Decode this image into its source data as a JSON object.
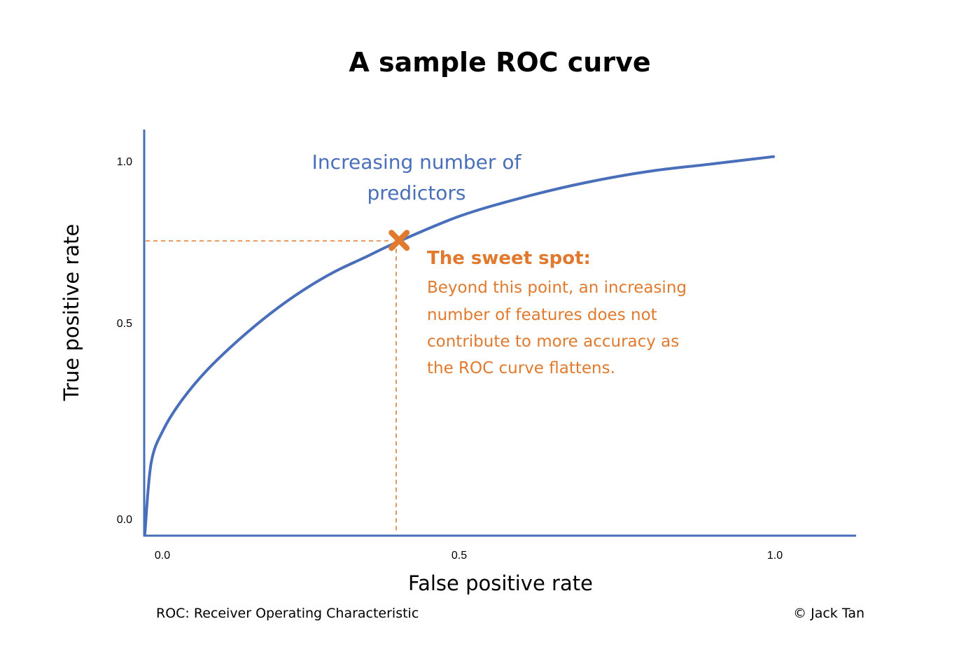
{
  "colors": {
    "curve": "#4a6fba",
    "axis": "#4a6fba",
    "accent": "#e07a2e",
    "text": "#000000"
  },
  "footer": {
    "abbreviation_note": "ROC: Receiver Operating Characteristic",
    "copyright": "© Jack Tan"
  },
  "chart_data": {
    "type": "line",
    "title": "A sample ROC curve",
    "xlabel": "False positive rate",
    "ylabel": "True positive rate",
    "xlim": [
      0,
      1
    ],
    "ylim": [
      0,
      1
    ],
    "x_ticks": [
      "0.0",
      "0.5",
      "1.0"
    ],
    "y_ticks": [
      "0.0",
      "0.5",
      "1.0"
    ],
    "grid": false,
    "legend": "none",
    "series": [
      {
        "x": [
          0,
          0.01,
          0.03,
          0.06,
          0.1,
          0.15,
          0.2,
          0.25,
          0.3,
          0.35,
          0.4,
          0.5,
          0.6,
          0.7,
          0.8,
          0.9,
          1.0
        ],
        "y": [
          0,
          0.19,
          0.28,
          0.36,
          0.44,
          0.52,
          0.59,
          0.65,
          0.7,
          0.74,
          0.78,
          0.85,
          0.9,
          0.94,
          0.97,
          0.99,
          1.01
        ]
      }
    ],
    "sweet_spot": {
      "x": 0.4,
      "y": 0.78
    },
    "annotations": {
      "curve_label_line1": "Increasing number of",
      "curve_label_line2": "predictors",
      "sweet_spot_heading": "The sweet spot:",
      "sweet_spot_body": [
        "Beyond this point, an increasing",
        "number of features does not",
        "contribute to more accuracy as",
        "the ROC curve flattens."
      ]
    }
  }
}
